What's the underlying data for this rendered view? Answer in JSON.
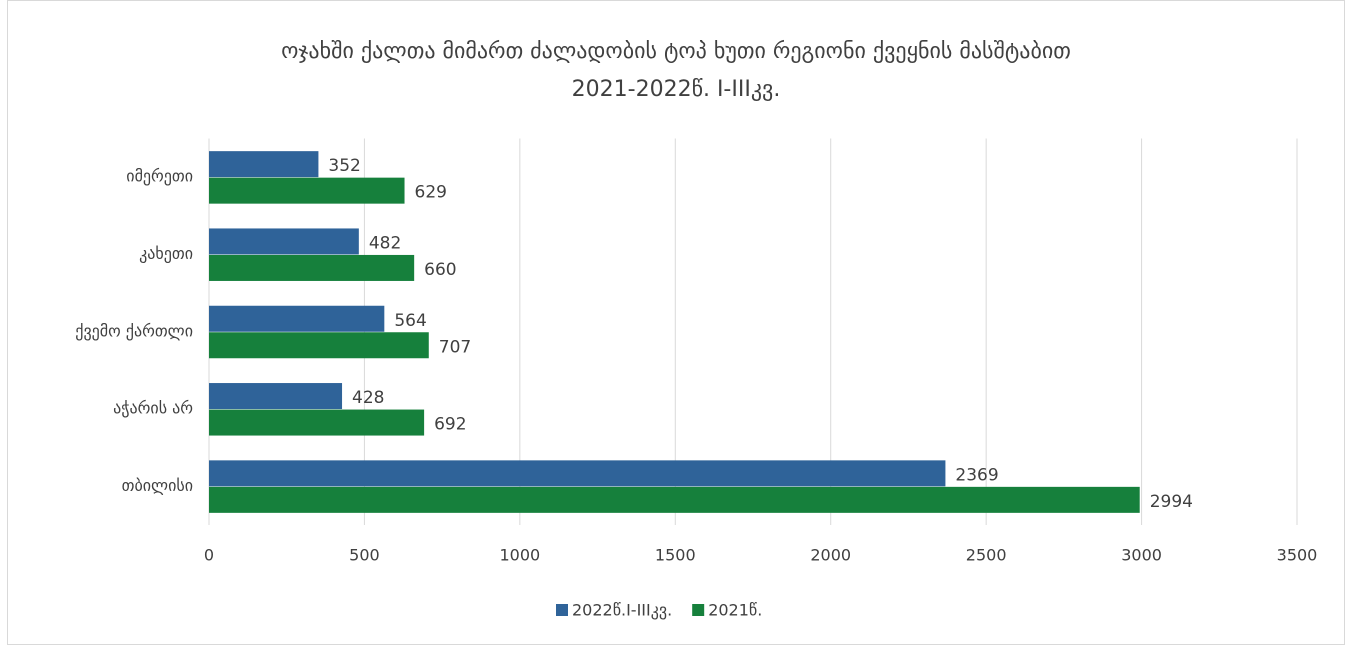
{
  "chart_data": {
    "type": "hbar",
    "title": [
      "ოჯახში ქალთა მიმართ ძალადობის ტოპ ხუთი რეგიონი ქვეყნის მასშტაბით",
      "2021-2022წ. I-IIIკვ."
    ],
    "categories": [
      "იმერეთი",
      "კახეთი",
      "ქვემო ქართლი",
      "აჭარის არ",
      "თბილისი"
    ],
    "series": [
      {
        "name": "2022წ.I-IIIკვ.",
        "color": "#2f6399",
        "values": [
          352,
          482,
          564,
          428,
          2369
        ]
      },
      {
        "name": "2021წ.",
        "color": "#16803c",
        "values": [
          629,
          660,
          707,
          692,
          2994
        ]
      }
    ],
    "xlim": [
      0,
      3500
    ],
    "xticks": [
      0,
      500,
      1000,
      1500,
      2000,
      2500,
      3000,
      3500
    ],
    "grid": true,
    "legend": "bottom"
  }
}
